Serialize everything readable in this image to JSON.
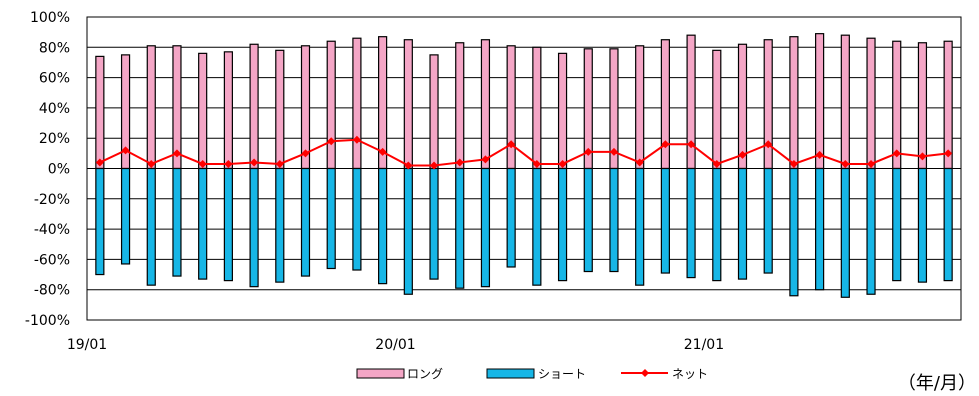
{
  "chart_data": {
    "type": "bar",
    "unit_label": "（年/月）",
    "y_unit": "%",
    "ylim": [
      -100,
      100
    ],
    "y_ticks": [
      100,
      80,
      60,
      40,
      20,
      0,
      -20,
      -40,
      -60,
      -80,
      -100
    ],
    "y_tick_labels": [
      "100%",
      "80%",
      "60%",
      "40%",
      "20%",
      "0%",
      "-20%",
      "-40%",
      "-60%",
      "-80%",
      "-100%"
    ],
    "x_tick_labels": [
      {
        "label": "19/01",
        "index": 0
      },
      {
        "label": "20/01",
        "index": 12
      },
      {
        "label": "21/01",
        "index": 24
      }
    ],
    "grid": true,
    "legend_position": "bottom",
    "categories": [
      "19/01",
      "19/02",
      "19/03",
      "19/04",
      "19/05",
      "19/06",
      "19/07",
      "19/08",
      "19/09",
      "19/10",
      "19/11",
      "19/12",
      "20/01",
      "20/02",
      "20/03",
      "20/04",
      "20/05",
      "20/06",
      "20/07",
      "20/08",
      "20/09",
      "20/10",
      "20/11",
      "20/12",
      "21/01",
      "21/02",
      "21/03",
      "21/04",
      "21/05",
      "21/06",
      "21/07",
      "21/08",
      "21/09",
      "21/10"
    ],
    "series": [
      {
        "name": "ロング",
        "kind": "bar",
        "color": "#f4a6c6",
        "values": [
          74,
          75,
          81,
          81,
          76,
          77,
          82,
          78,
          81,
          84,
          86,
          87,
          85,
          75,
          83,
          85,
          81,
          80,
          76,
          79,
          79,
          81,
          85,
          88,
          78,
          82,
          85,
          87,
          89,
          88,
          86,
          84,
          83,
          84
        ]
      },
      {
        "name": "ショート",
        "kind": "bar",
        "color": "#17b6e6",
        "values": [
          -70,
          -63,
          -77,
          -71,
          -73,
          -74,
          -78,
          -75,
          -71,
          -66,
          -67,
          -76,
          -83,
          -73,
          -79,
          -78,
          -65,
          -77,
          -74,
          -68,
          -68,
          -77,
          -69,
          -72,
          -74,
          -73,
          -69,
          -84,
          -80,
          -85,
          -83,
          -74,
          -75,
          -74
        ]
      },
      {
        "name": "ネット",
        "kind": "line",
        "color": "#ff0000",
        "values": [
          4,
          12,
          3,
          10,
          3,
          3,
          4,
          3,
          10,
          18,
          19,
          11,
          2,
          2,
          4,
          6,
          16,
          3,
          3,
          11,
          11,
          4,
          16,
          16,
          3,
          9,
          16,
          3,
          9,
          3,
          3,
          10,
          8,
          10
        ]
      }
    ]
  }
}
